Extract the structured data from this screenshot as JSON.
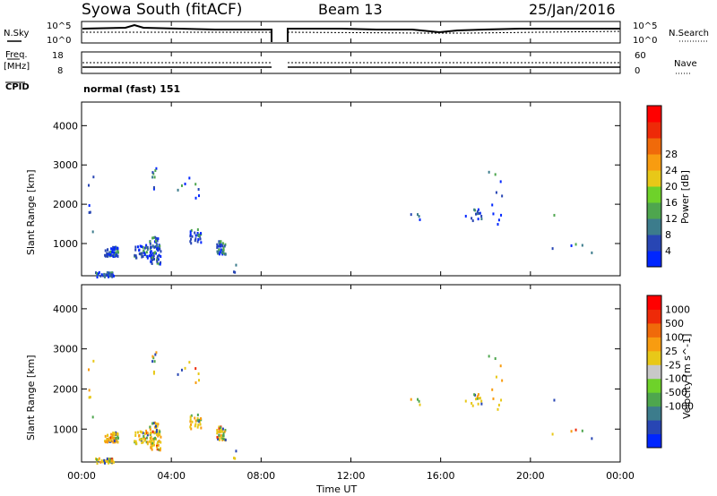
{
  "header": {
    "station": "Syowa South (fitACF)",
    "beam": "Beam 13",
    "date": "25/Jan/2016"
  },
  "noise_panel": {
    "left_label": "N.Sky",
    "right_label": "N.Search",
    "left_ticks": [
      "10^5",
      "10^0"
    ],
    "right_ticks": [
      "10^5",
      "10^0"
    ]
  },
  "freq_panel": {
    "left_label": "Freq.",
    "left_unit": "[MHz]",
    "right_label": "Nave",
    "left_ticks": [
      "18",
      "8"
    ],
    "right_ticks": [
      "60",
      "0"
    ]
  },
  "cpid": {
    "label": "CPID",
    "value": "normal (fast) 151"
  },
  "time_axis": {
    "label": "Time UT",
    "ticks": [
      "00:00",
      "04:00",
      "08:00",
      "12:00",
      "16:00",
      "20:00",
      "00:00"
    ]
  },
  "colors": {
    "power_scale": [
      "#0026ff",
      "#2846b4",
      "#3c7c8c",
      "#4ea64e",
      "#6ed22a",
      "#e8c818",
      "#f89c10",
      "#f06a0a",
      "#ee2a08",
      "#ff0000"
    ],
    "velocity_scale": [
      "#0026ff",
      "#2846b4",
      "#3c7c8c",
      "#4ea64e",
      "#6ed22a",
      "#c8c8c8",
      "#e8c818",
      "#f89c10",
      "#f06a0a",
      "#ee2a08",
      "#ff0000"
    ]
  },
  "chart_data": [
    {
      "type": "heatmap",
      "title": "Power",
      "ylabel": "Slant Range [km]",
      "xlabel": "",
      "xlim_hours": [
        0,
        24
      ],
      "ylim_km": [
        180,
        4600
      ],
      "yticks": [
        "1000",
        "2000",
        "3000",
        "4000"
      ],
      "colorbar": {
        "label": "Power [dB]",
        "range": [
          0,
          32
        ],
        "ticks": [
          "4",
          "8",
          "12",
          "16",
          "20",
          "24",
          "28"
        ]
      }
    },
    {
      "type": "heatmap",
      "title": "Velocity",
      "ylabel": "Slant Range [km]",
      "xlabel": "Time UT",
      "xlim_hours": [
        0,
        24
      ],
      "ylim_km": [
        180,
        4600
      ],
      "yticks": [
        "1000",
        "2000",
        "3000",
        "4000"
      ],
      "colorbar": {
        "label": "Velocity [m s^-1]",
        "ticks": [
          "1000",
          "500",
          "100",
          "25",
          "-25",
          "-100",
          "-500",
          "-1000"
        ]
      }
    }
  ]
}
